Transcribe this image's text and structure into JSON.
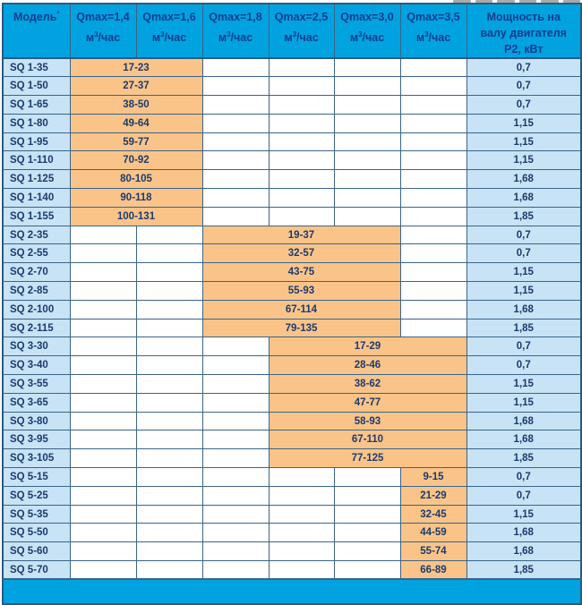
{
  "colors": {
    "header_bg": "#00a2e0",
    "footer_bg": "#00a2e0",
    "cell_blue": "#c8e3f5",
    "cell_orange": "#fac489",
    "grid": "#3a6488",
    "outer": "#2a5a80",
    "header_text": "#123d8e",
    "cell_text": "#1c3a6e"
  },
  "table": {
    "model_header": {
      "label": "Модель",
      "sup": "*"
    },
    "unit": {
      "base": "м",
      "sup": "3",
      "rest": "/час"
    },
    "qmax_headers": [
      {
        "label": "Qmax=1,4"
      },
      {
        "label": "Qmax=1,6"
      },
      {
        "label": "Qmax=1,8"
      },
      {
        "label": "Qmax=2,5"
      },
      {
        "label": "Qmax=3,0"
      },
      {
        "label": "Qmax=3,5"
      }
    ],
    "power_header": {
      "label": "Мощность на валу двигателя P2, кВт"
    },
    "rows": [
      {
        "model": "SQ 1-35",
        "range": "17-23",
        "span_start": 0,
        "span_cols": 2,
        "p2": "0,7"
      },
      {
        "model": "SQ 1-50",
        "range": "27-37",
        "span_start": 0,
        "span_cols": 2,
        "p2": "0,7"
      },
      {
        "model": "SQ 1-65",
        "range": "38-50",
        "span_start": 0,
        "span_cols": 2,
        "p2": "0,7"
      },
      {
        "model": "SQ 1-80",
        "range": "49-64",
        "span_start": 0,
        "span_cols": 2,
        "p2": "1,15"
      },
      {
        "model": "SQ 1-95",
        "range": "59-77",
        "span_start": 0,
        "span_cols": 2,
        "p2": "1,15"
      },
      {
        "model": "SQ 1-110",
        "range": "70-92",
        "span_start": 0,
        "span_cols": 2,
        "p2": "1,15"
      },
      {
        "model": "SQ 1-125",
        "range": "80-105",
        "span_start": 0,
        "span_cols": 2,
        "p2": "1,68"
      },
      {
        "model": "SQ 1-140",
        "range": "90-118",
        "span_start": 0,
        "span_cols": 2,
        "p2": "1,68"
      },
      {
        "model": "SQ 1-155",
        "range": "100-131",
        "span_start": 0,
        "span_cols": 2,
        "p2": "1,85"
      },
      {
        "model": "SQ 2-35",
        "range": "19-37",
        "span_start": 2,
        "span_cols": 3,
        "p2": "0,7"
      },
      {
        "model": "SQ 2-55",
        "range": "32-57",
        "span_start": 2,
        "span_cols": 3,
        "p2": "0,7"
      },
      {
        "model": "SQ 2-70",
        "range": "43-75",
        "span_start": 2,
        "span_cols": 3,
        "p2": "1,15"
      },
      {
        "model": "SQ 2-85",
        "range": "55-93",
        "span_start": 2,
        "span_cols": 3,
        "p2": "1,15"
      },
      {
        "model": "SQ 2-100",
        "range": "67-114",
        "span_start": 2,
        "span_cols": 3,
        "p2": "1,68"
      },
      {
        "model": "SQ 2-115",
        "range": "79-135",
        "span_start": 2,
        "span_cols": 3,
        "p2": "1,85"
      },
      {
        "model": "SQ 3-30",
        "range": "17-29",
        "span_start": 3,
        "span_cols": 3,
        "p2": "0,7"
      },
      {
        "model": "SQ 3-40",
        "range": "28-46",
        "span_start": 3,
        "span_cols": 3,
        "p2": "0,7"
      },
      {
        "model": "SQ 3-55",
        "range": "38-62",
        "span_start": 3,
        "span_cols": 3,
        "p2": "1,15"
      },
      {
        "model": "SQ 3-65",
        "range": "47-77",
        "span_start": 3,
        "span_cols": 3,
        "p2": "1,15"
      },
      {
        "model": "SQ 3-80",
        "range": "58-93",
        "span_start": 3,
        "span_cols": 3,
        "p2": "1,68"
      },
      {
        "model": "SQ 3-95",
        "range": "67-110",
        "span_start": 3,
        "span_cols": 3,
        "p2": "1,68"
      },
      {
        "model": "SQ 3-105",
        "range": "77-125",
        "span_start": 3,
        "span_cols": 3,
        "p2": "1,85"
      },
      {
        "model": "SQ 5-15",
        "range": "9-15",
        "span_start": 5,
        "span_cols": 1,
        "p2": "0,7"
      },
      {
        "model": "SQ 5-25",
        "range": "21-29",
        "span_start": 5,
        "span_cols": 1,
        "p2": "0,7"
      },
      {
        "model": "SQ 5-35",
        "range": "32-45",
        "span_start": 5,
        "span_cols": 1,
        "p2": "1,15"
      },
      {
        "model": "SQ 5-50",
        "range": "44-59",
        "span_start": 5,
        "span_cols": 1,
        "p2": "1,68"
      },
      {
        "model": "SQ 5-60",
        "range": "55-74",
        "span_start": 5,
        "span_cols": 1,
        "p2": "1,68"
      },
      {
        "model": "SQ 5-70",
        "range": "66-89",
        "span_start": 5,
        "span_cols": 1,
        "p2": "1,85"
      }
    ]
  }
}
